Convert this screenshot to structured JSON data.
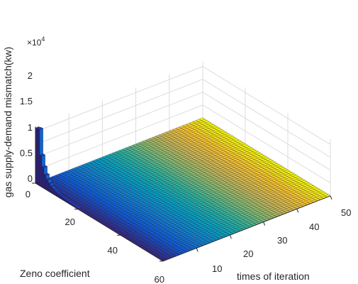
{
  "chart_data": {
    "type": "bar3d-surface",
    "zlabel": "gas supply-demand mismatch(kw)",
    "zexponent_base": "×10",
    "zexponent_power": "4",
    "xlabel": "times of iteration",
    "ylabel": "Zeno coefficient",
    "x_ticks": [
      "10",
      "20",
      "30",
      "40",
      "50"
    ],
    "y_ticks": [
      "0",
      "20",
      "40",
      "60"
    ],
    "z_ticks": [
      "0",
      "0.5",
      "1",
      "1.5",
      "2"
    ],
    "xlim": [
      0,
      50
    ],
    "ylim": [
      0,
      60
    ],
    "zlim": [
      0,
      22000
    ],
    "grid": true,
    "colormap": "parula",
    "bar_column_at_iteration": 1,
    "bar_values_by_zeno": [
      {
        "zeno": 0,
        "value": 21500
      },
      {
        "zeno": 1,
        "value": 21800
      },
      {
        "zeno": 2,
        "value": 12000
      },
      {
        "zeno": 3,
        "value": 8000
      },
      {
        "zeno": 4,
        "value": 5500
      },
      {
        "zeno": 5,
        "value": 4200
      },
      {
        "zeno": 6,
        "value": 3200
      },
      {
        "zeno": 7,
        "value": 2500
      },
      {
        "zeno": 8,
        "value": 1900
      },
      {
        "zeno": 9,
        "value": 1500
      },
      {
        "zeno": 10,
        "value": 1200
      },
      {
        "zeno": 11,
        "value": 1000
      },
      {
        "zeno": 12,
        "value": 850
      },
      {
        "zeno": 13,
        "value": 700
      },
      {
        "zeno": 14,
        "value": 600
      },
      {
        "zeno": 15,
        "value": 500
      },
      {
        "zeno": 16,
        "value": 420
      },
      {
        "zeno": 17,
        "value": 350
      },
      {
        "zeno": 18,
        "value": 300
      },
      {
        "zeno": 19,
        "value": 250
      }
    ],
    "surface_value_rest": 0,
    "colors": {
      "parula": [
        "#352a87",
        "#0f5cdd",
        "#1481d6",
        "#06a4ca",
        "#2eb7a4",
        "#87bf77",
        "#d1bb59",
        "#fec832",
        "#f9fb0e"
      ],
      "axis": "#262626",
      "grid": "#dcdcdc",
      "mesh_edge": "#111111"
    }
  }
}
